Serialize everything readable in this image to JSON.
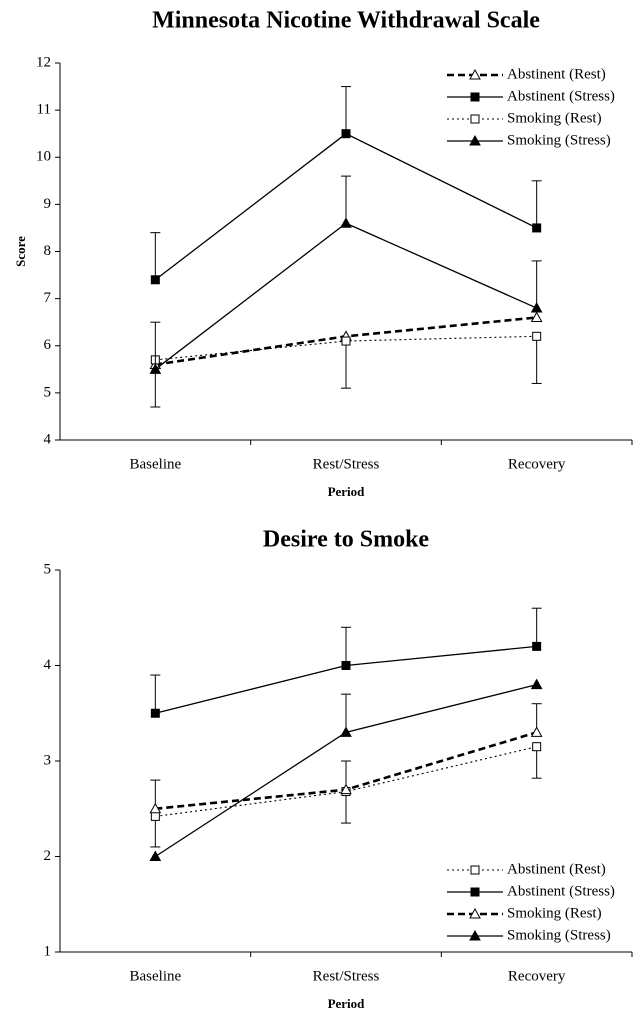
{
  "chart_data": [
    {
      "type": "line",
      "title": "Minnesota Nicotine Withdrawal Scale",
      "y_label": "Score",
      "x_label": "Period",
      "categories": [
        "Baseline",
        "Rest/Stress",
        "Recovery"
      ],
      "ylim": [
        4,
        12
      ],
      "yticks": [
        4,
        5,
        6,
        7,
        8,
        9,
        10,
        11,
        12
      ],
      "legend": "upper right",
      "series": [
        {
          "name": "Abstinent (Rest)",
          "color": "#000000",
          "dash": "dashed",
          "marker": "open-triangle",
          "values": [
            5.6,
            6.2,
            6.6
          ]
        },
        {
          "name": "Abstinent (Stress)",
          "color": "#000000",
          "dash": "solid",
          "marker": "filled-square",
          "values": [
            7.4,
            10.5,
            8.5
          ],
          "errors": [
            1.0,
            1.0,
            1.0
          ],
          "error_direction": "up"
        },
        {
          "name": "Smoking (Rest)",
          "color": "#000000",
          "dash": "dotted",
          "marker": "open-square",
          "values": [
            5.7,
            6.1,
            6.2
          ],
          "errors": [
            1.0,
            1.0,
            1.0
          ],
          "error_direction": "down"
        },
        {
          "name": "Smoking (Stress)",
          "color": "#000000",
          "dash": "solid",
          "marker": "filled-triangle",
          "values": [
            5.5,
            8.6,
            6.8
          ],
          "errors": [
            1.0,
            1.0,
            1.0
          ],
          "error_direction": "up"
        }
      ]
    },
    {
      "type": "line",
      "title": "Desire to Smoke",
      "x_label": "Period",
      "categories": [
        "Baseline",
        "Rest/Stress",
        "Recovery"
      ],
      "ylim": [
        1,
        5
      ],
      "yticks": [
        1,
        2,
        3,
        4,
        5
      ],
      "legend": "lower right",
      "series": [
        {
          "name": "Abstinent (Rest)",
          "color": "#000000",
          "dash": "dotted",
          "marker": "open-square",
          "values": [
            2.42,
            2.68,
            3.15
          ],
          "errors": [
            0.32,
            0.33,
            0.33
          ],
          "error_direction": "down"
        },
        {
          "name": "Abstinent (Stress)",
          "color": "#000000",
          "dash": "solid",
          "marker": "filled-square",
          "values": [
            3.5,
            4.0,
            4.2
          ],
          "errors": [
            0.4,
            0.4,
            0.4
          ],
          "error_direction": "up"
        },
        {
          "name": "Smoking (Rest)",
          "color": "#000000",
          "dash": "dashed",
          "marker": "open-triangle",
          "values": [
            2.5,
            2.7,
            3.3
          ],
          "errors": [
            0.3,
            0.3,
            0.3
          ],
          "error_direction": "up"
        },
        {
          "name": "Smoking (Stress)",
          "color": "#000000",
          "dash": "solid",
          "marker": "filled-triangle",
          "values": [
            2.0,
            3.3,
            3.8
          ],
          "errors": [
            null,
            0.4,
            null
          ],
          "error_direction": "up"
        }
      ]
    }
  ]
}
